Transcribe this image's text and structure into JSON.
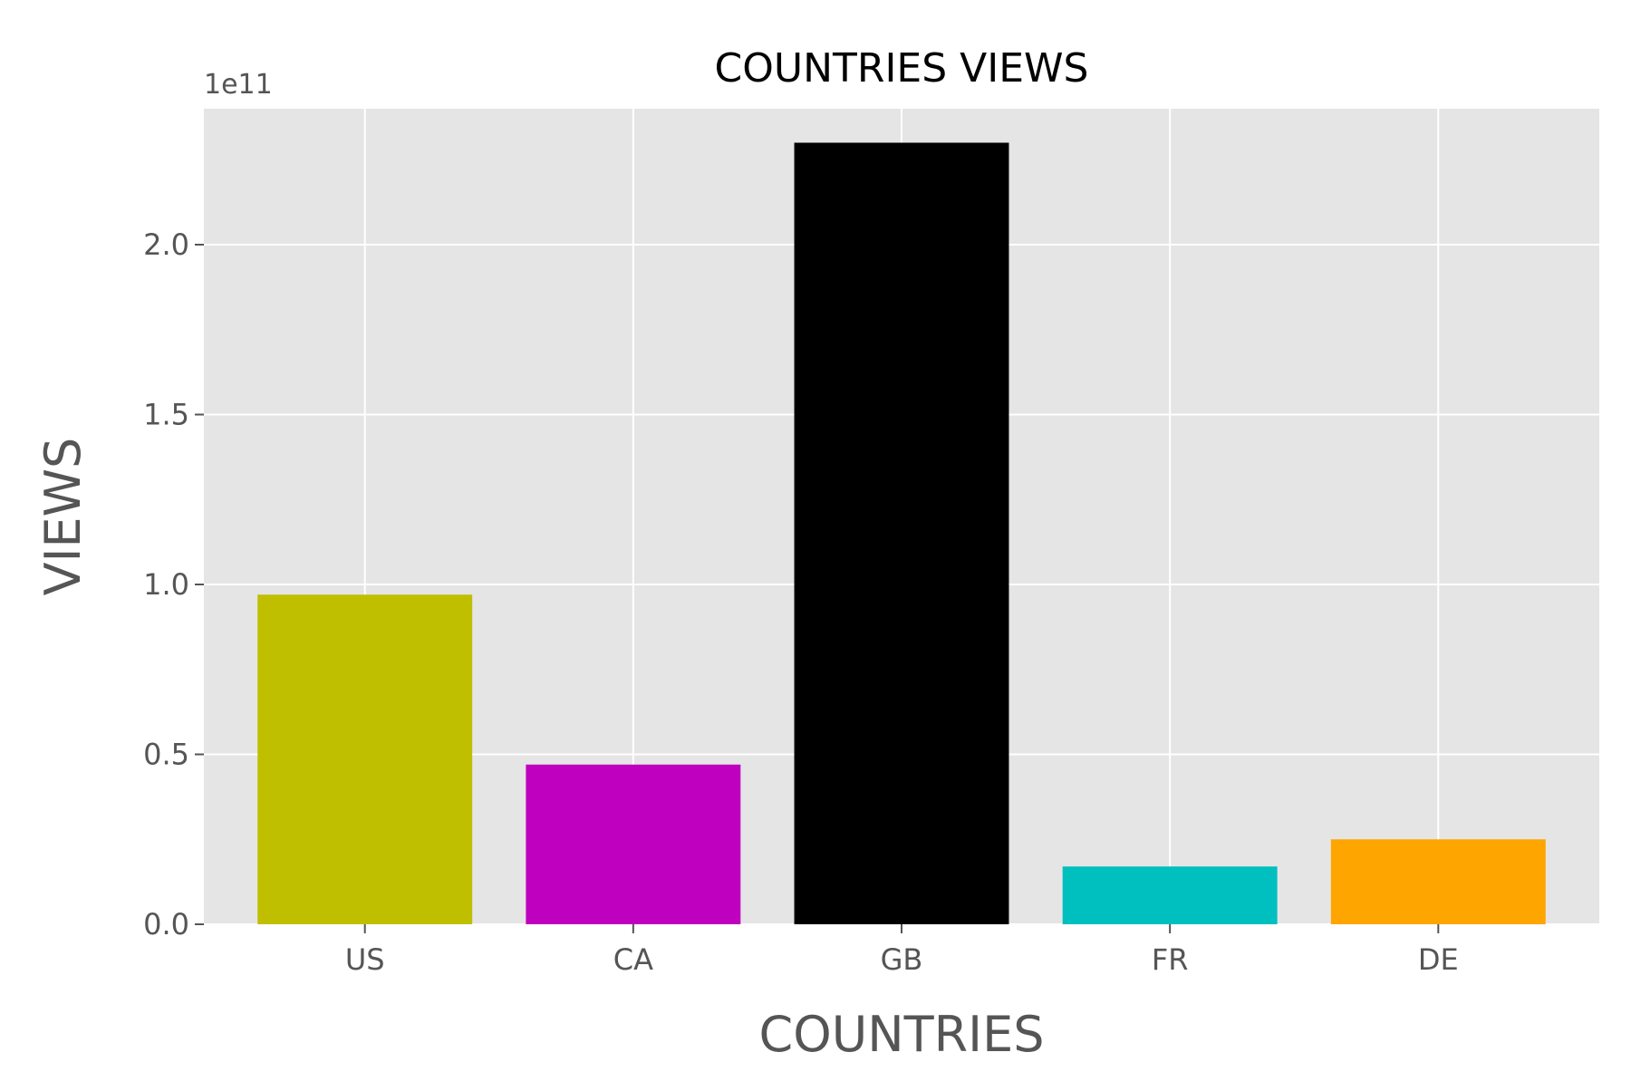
{
  "chart_data": {
    "type": "bar",
    "title": "COUNTRIES VIEWS",
    "xlabel": "COUNTRIES",
    "ylabel": "VIEWS",
    "offset_label": "1e11",
    "categories": [
      "US",
      "CA",
      "GB",
      "FR",
      "DE"
    ],
    "values": [
      97000000000,
      47000000000,
      230000000000,
      17000000000,
      25000000000
    ],
    "bar_colors": [
      "#bfbf00",
      "#bf00bf",
      "#000000",
      "#00bfbf",
      "#ffa500"
    ],
    "ylim": [
      0,
      240000000000
    ],
    "yticks": [
      0,
      50000000000,
      100000000000,
      150000000000,
      200000000000
    ],
    "ytick_labels": [
      "0.0",
      "0.5",
      "1.0",
      "1.5",
      "2.0"
    ],
    "grid": true,
    "legend": "none",
    "style": {
      "plot_background": "#e5e5e5",
      "grid_color": "#ffffff",
      "tick_label_color": "#555555",
      "axis_label_color": "#555555",
      "title_color": "#000000"
    }
  }
}
